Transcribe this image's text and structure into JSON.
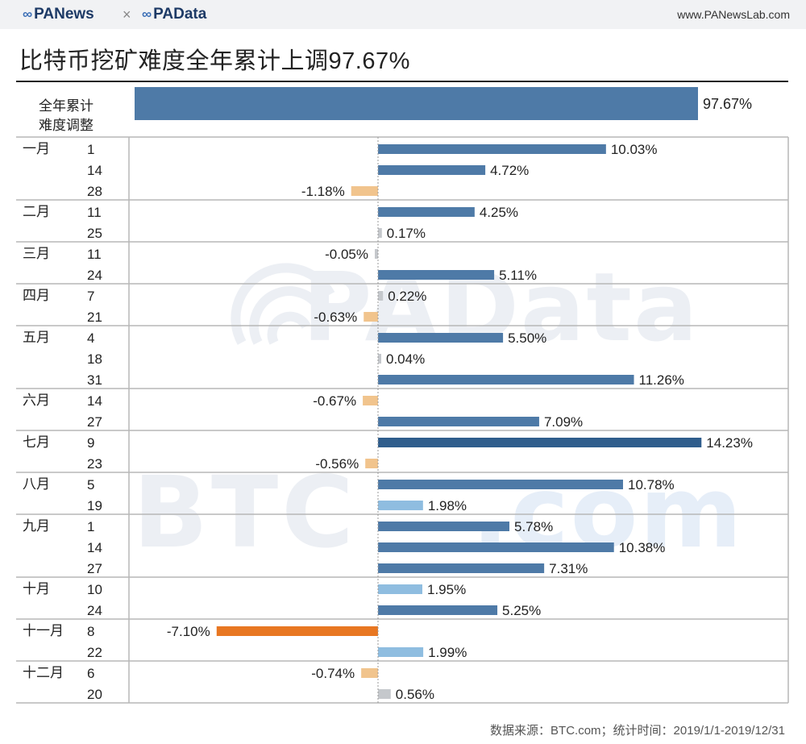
{
  "header": {
    "logo_left": "PANews",
    "logo_separator": "×",
    "logo_right": "PAData",
    "site_url": "www.PANewsLab.com"
  },
  "watermarks": {
    "top": "PAData",
    "bottom_left": "BTC",
    "bottom_right": ".com"
  },
  "colors": {
    "positive_dark": "#2f5d8c",
    "positive_mid": "#4e7aa7",
    "positive_light": "#8fbde0",
    "negative_strong": "#e87722",
    "negative_light": "#f1c48d",
    "near_zero": "#c5c8cc",
    "grid": "#b7b7b7"
  },
  "chart_data": {
    "type": "bar",
    "orientation": "horizontal",
    "title": "比特币挖矿难度全年累计上调97.67%",
    "total": {
      "label_line1": "全年累计",
      "label_line2": "难度调整",
      "value": 97.67,
      "value_label": "97.67%"
    },
    "unit": "%",
    "x_range": [
      -8,
      16
    ],
    "groups": [
      {
        "month": "一月",
        "rows": [
          {
            "day": "1",
            "value": 10.03,
            "label": "10.03%"
          },
          {
            "day": "14",
            "value": 4.72,
            "label": "4.72%"
          },
          {
            "day": "28",
            "value": -1.18,
            "label": "-1.18%"
          }
        ]
      },
      {
        "month": "二月",
        "rows": [
          {
            "day": "11",
            "value": 4.25,
            "label": "4.25%"
          },
          {
            "day": "25",
            "value": 0.17,
            "label": "0.17%"
          }
        ]
      },
      {
        "month": "三月",
        "rows": [
          {
            "day": "11",
            "value": -0.05,
            "label": "-0.05%"
          },
          {
            "day": "24",
            "value": 5.11,
            "label": "5.11%"
          }
        ]
      },
      {
        "month": "四月",
        "rows": [
          {
            "day": "7",
            "value": 0.22,
            "label": "0.22%"
          },
          {
            "day": "21",
            "value": -0.63,
            "label": "-0.63%"
          }
        ]
      },
      {
        "month": "五月",
        "rows": [
          {
            "day": "4",
            "value": 5.5,
            "label": "5.50%"
          },
          {
            "day": "18",
            "value": 0.04,
            "label": "0.04%"
          },
          {
            "day": "31",
            "value": 11.26,
            "label": "11.26%"
          }
        ]
      },
      {
        "month": "六月",
        "rows": [
          {
            "day": "14",
            "value": -0.67,
            "label": "-0.67%"
          },
          {
            "day": "27",
            "value": 7.09,
            "label": "7.09%"
          }
        ]
      },
      {
        "month": "七月",
        "rows": [
          {
            "day": "9",
            "value": 14.23,
            "label": "14.23%"
          },
          {
            "day": "23",
            "value": -0.56,
            "label": "-0.56%"
          }
        ]
      },
      {
        "month": "八月",
        "rows": [
          {
            "day": "5",
            "value": 10.78,
            "label": "10.78%"
          },
          {
            "day": "19",
            "value": 1.98,
            "label": "1.98%"
          }
        ]
      },
      {
        "month": "九月",
        "rows": [
          {
            "day": "1",
            "value": 5.78,
            "label": "5.78%"
          },
          {
            "day": "14",
            "value": 10.38,
            "label": "10.38%"
          },
          {
            "day": "27",
            "value": 7.31,
            "label": "7.31%"
          }
        ]
      },
      {
        "month": "十月",
        "rows": [
          {
            "day": "10",
            "value": 1.95,
            "label": "1.95%"
          },
          {
            "day": "24",
            "value": 5.25,
            "label": "5.25%"
          }
        ]
      },
      {
        "month": "十一月",
        "rows": [
          {
            "day": "8",
            "value": -7.1,
            "label": "-7.10%"
          },
          {
            "day": "22",
            "value": 1.99,
            "label": "1.99%"
          }
        ]
      },
      {
        "month": "十二月",
        "rows": [
          {
            "day": "6",
            "value": -0.74,
            "label": "-0.74%"
          },
          {
            "day": "20",
            "value": 0.56,
            "label": "0.56%"
          }
        ]
      }
    ],
    "source": "数据来源：BTC.com；统计时间：2019/1/1-2019/12/31"
  }
}
